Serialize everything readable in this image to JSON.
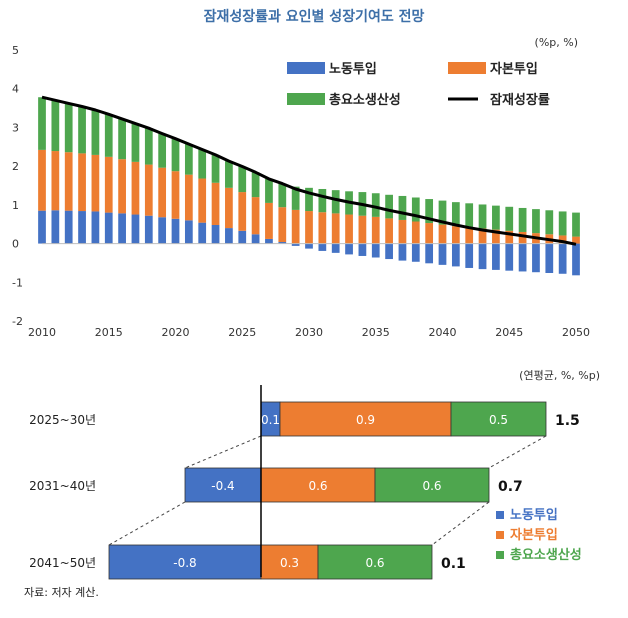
{
  "title": "잠재성장률과 요인별 성장기여도 전망",
  "colors": {
    "labor": "#4472c4",
    "capital": "#ed7d31",
    "tfp": "#4ea64e",
    "line": "#000000"
  },
  "chart_data": [
    {
      "type": "bar",
      "stacked": true,
      "title": "잠재성장률과 요인별 성장기여도 전망",
      "unit": "(%p, %)",
      "ylim": [
        -2,
        5
      ],
      "yticks": [
        -2,
        -1,
        0,
        1,
        2,
        3,
        4,
        5
      ],
      "xticks": [
        2010,
        2015,
        2020,
        2025,
        2030,
        2035,
        2040,
        2045,
        2050
      ],
      "legend_position": "top-right",
      "years": [
        2010,
        2011,
        2012,
        2013,
        2014,
        2015,
        2016,
        2017,
        2018,
        2019,
        2020,
        2021,
        2022,
        2023,
        2024,
        2025,
        2026,
        2027,
        2028,
        2029,
        2030,
        2031,
        2032,
        2033,
        2034,
        2035,
        2036,
        2037,
        2038,
        2039,
        2040,
        2041,
        2042,
        2043,
        2044,
        2045,
        2046,
        2047,
        2048,
        2049,
        2050
      ],
      "series": [
        {
          "name": "노동투입",
          "key": "labor",
          "values": [
            0.85,
            0.86,
            0.85,
            0.84,
            0.83,
            0.8,
            0.78,
            0.75,
            0.72,
            0.68,
            0.64,
            0.6,
            0.54,
            0.48,
            0.4,
            0.33,
            0.24,
            0.12,
            0.04,
            -0.06,
            -0.13,
            -0.19,
            -0.24,
            -0.28,
            -0.32,
            -0.36,
            -0.4,
            -0.44,
            -0.47,
            -0.51,
            -0.55,
            -0.59,
            -0.63,
            -0.66,
            -0.68,
            -0.7,
            -0.72,
            -0.74,
            -0.76,
            -0.78,
            -0.82
          ]
        },
        {
          "name": "자본투입",
          "key": "capital",
          "values": [
            1.57,
            1.53,
            1.51,
            1.49,
            1.46,
            1.44,
            1.4,
            1.36,
            1.32,
            1.28,
            1.23,
            1.18,
            1.14,
            1.09,
            1.04,
            1.0,
            0.96,
            0.93,
            0.9,
            0.87,
            0.84,
            0.81,
            0.78,
            0.75,
            0.72,
            0.69,
            0.65,
            0.61,
            0.57,
            0.53,
            0.49,
            0.45,
            0.42,
            0.39,
            0.36,
            0.33,
            0.3,
            0.27,
            0.24,
            0.21,
            0.18
          ]
        },
        {
          "name": "총요소생산성",
          "key": "tfp",
          "values": [
            1.36,
            1.31,
            1.26,
            1.21,
            1.16,
            1.1,
            1.04,
            0.99,
            0.94,
            0.88,
            0.84,
            0.79,
            0.75,
            0.72,
            0.69,
            0.66,
            0.64,
            0.62,
            0.61,
            0.6,
            0.6,
            0.6,
            0.6,
            0.6,
            0.61,
            0.61,
            0.61,
            0.62,
            0.62,
            0.62,
            0.62,
            0.62,
            0.62,
            0.62,
            0.62,
            0.62,
            0.62,
            0.62,
            0.62,
            0.62,
            0.62
          ]
        },
        {
          "name": "잠재성장률",
          "key": "line",
          "type": "line",
          "values": [
            3.78,
            3.7,
            3.62,
            3.54,
            3.45,
            3.34,
            3.22,
            3.1,
            2.98,
            2.84,
            2.71,
            2.57,
            2.43,
            2.29,
            2.13,
            1.99,
            1.84,
            1.67,
            1.55,
            1.41,
            1.31,
            1.22,
            1.14,
            1.07,
            1.01,
            0.94,
            0.86,
            0.79,
            0.72,
            0.64,
            0.56,
            0.48,
            0.41,
            0.35,
            0.3,
            0.25,
            0.2,
            0.15,
            0.1,
            0.05,
            -0.02
          ]
        }
      ]
    },
    {
      "type": "bar",
      "orientation": "horizontal",
      "stacked": true,
      "unit": "(연평균, %, %p)",
      "legend_position": "bottom-right",
      "series_names": [
        "노동투입",
        "자본투입",
        "총요소생산성"
      ],
      "rows": [
        {
          "label": "2025~30년",
          "labor": 0.1,
          "capital": 0.9,
          "tfp": 0.5,
          "total": 1.5,
          "labels": {
            "labor": "0.1",
            "capital": "0.9",
            "tfp": "0.5",
            "total": "1.5"
          }
        },
        {
          "label": "2031~40년",
          "labor": -0.4,
          "capital": 0.6,
          "tfp": 0.6,
          "total": 0.7,
          "labels": {
            "labor": "-0.4",
            "capital": "0.6",
            "tfp": "0.6",
            "total": "0.7"
          }
        },
        {
          "label": "2041~50년",
          "labor": -0.8,
          "capital": 0.3,
          "tfp": 0.6,
          "total": 0.1,
          "labels": {
            "labor": "-0.8",
            "capital": "0.3",
            "tfp": "0.6",
            "total": "0.1"
          }
        }
      ]
    }
  ],
  "source": "자료: 저자 계산."
}
